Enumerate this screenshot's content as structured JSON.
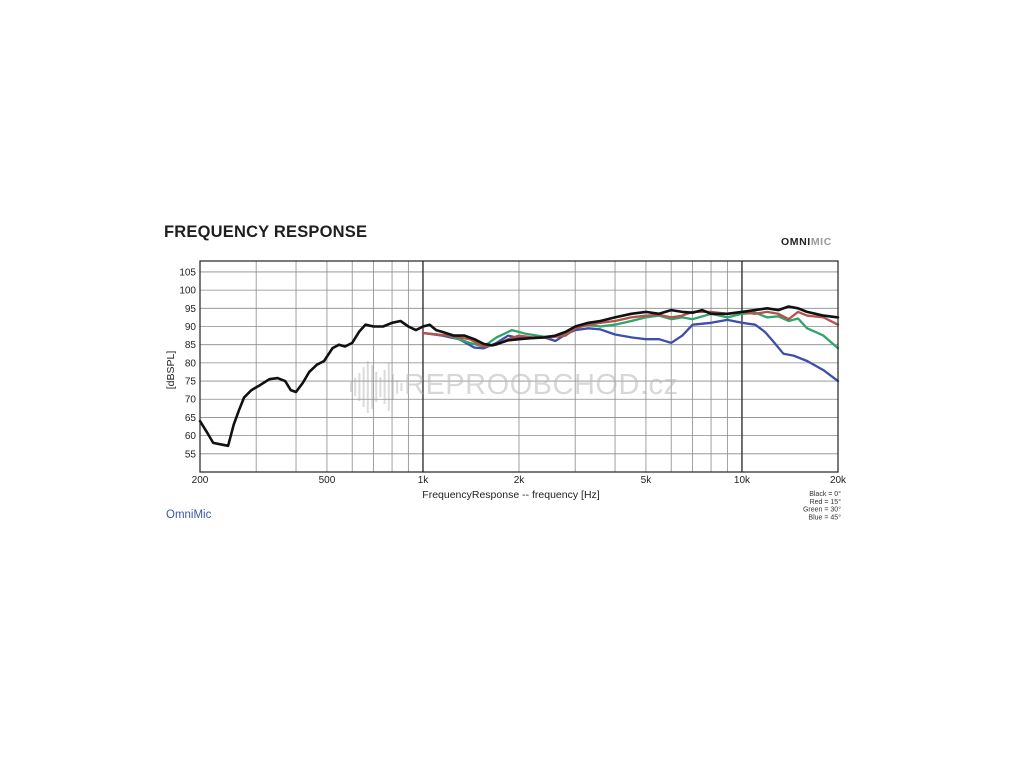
{
  "header": {
    "title": "FREQUENCY RESPONSE",
    "brand_part1": "OMNI",
    "brand_part2": "MIC"
  },
  "footer": {
    "label": "OmniMic"
  },
  "watermark": {
    "text": "REPROOBCHOD.cz"
  },
  "colors": {
    "black": "#111111",
    "red": "#b5524b",
    "green": "#2fa56a",
    "blue": "#3d4fa8",
    "grid": "#8a8a8a",
    "grid_major": "#333333"
  },
  "chart_data": {
    "type": "line",
    "title": "",
    "xlabel": "FrequencyResponse -- frequency [Hz]",
    "ylabel": "[dBSPL]",
    "x_scale": "log",
    "xlim": [
      200,
      20000
    ],
    "ylim": [
      50,
      108
    ],
    "grid": true,
    "x_ticks": [
      {
        "value": 200,
        "label": "200"
      },
      {
        "value": 500,
        "label": "500"
      },
      {
        "value": 1000,
        "label": "1k"
      },
      {
        "value": 2000,
        "label": "2k"
      },
      {
        "value": 5000,
        "label": "5k"
      },
      {
        "value": 10000,
        "label": "10k"
      },
      {
        "value": 20000,
        "label": "20k"
      }
    ],
    "y_ticks": [
      55,
      60,
      65,
      70,
      75,
      80,
      85,
      90,
      95,
      100,
      105
    ],
    "legend": [
      "Black = 0°",
      "Red = 15°",
      "Green = 30°",
      "Blue = 45°"
    ],
    "legend_position": "bottom-right",
    "series": [
      {
        "name": "Blue = 45°",
        "color": "blue",
        "points": [
          [
            1000,
            88.2
          ],
          [
            1150,
            87.5
          ],
          [
            1300,
            86.5
          ],
          [
            1450,
            84.2
          ],
          [
            1550,
            84.0
          ],
          [
            1700,
            85.5
          ],
          [
            1850,
            87.5
          ],
          [
            2000,
            86.8
          ],
          [
            2200,
            86.8
          ],
          [
            2400,
            87.0
          ],
          [
            2600,
            86.0
          ],
          [
            2800,
            87.8
          ],
          [
            3000,
            89.0
          ],
          [
            3300,
            89.5
          ],
          [
            3600,
            89.2
          ],
          [
            4000,
            87.8
          ],
          [
            4500,
            87.0
          ],
          [
            5000,
            86.5
          ],
          [
            5500,
            86.5
          ],
          [
            6000,
            85.5
          ],
          [
            6500,
            87.5
          ],
          [
            7000,
            90.5
          ],
          [
            8000,
            91.0
          ],
          [
            9000,
            91.8
          ],
          [
            10000,
            91.0
          ],
          [
            11000,
            90.5
          ],
          [
            11800,
            88.5
          ],
          [
            12500,
            86.0
          ],
          [
            13500,
            82.5
          ],
          [
            14500,
            82.0
          ],
          [
            16000,
            80.5
          ],
          [
            18000,
            78.0
          ],
          [
            20000,
            75.0
          ]
        ]
      },
      {
        "name": "Green = 30°",
        "color": "green",
        "points": [
          [
            1000,
            88.2
          ],
          [
            1200,
            87.5
          ],
          [
            1400,
            85.5
          ],
          [
            1550,
            84.5
          ],
          [
            1700,
            87.0
          ],
          [
            1900,
            89.0
          ],
          [
            2100,
            88.0
          ],
          [
            2400,
            87.2
          ],
          [
            2700,
            87.5
          ],
          [
            3000,
            89.5
          ],
          [
            3300,
            90.5
          ],
          [
            3600,
            90.0
          ],
          [
            4000,
            90.5
          ],
          [
            4500,
            91.5
          ],
          [
            5000,
            92.5
          ],
          [
            5500,
            93.0
          ],
          [
            6000,
            92.0
          ],
          [
            6500,
            92.5
          ],
          [
            7000,
            92.0
          ],
          [
            8000,
            93.5
          ],
          [
            9000,
            92.5
          ],
          [
            10000,
            93.5
          ],
          [
            11000,
            93.8
          ],
          [
            12000,
            92.5
          ],
          [
            13000,
            92.8
          ],
          [
            14000,
            91.5
          ],
          [
            15000,
            92.2
          ],
          [
            16000,
            89.5
          ],
          [
            17000,
            88.5
          ],
          [
            18000,
            87.5
          ],
          [
            20000,
            84.0
          ]
        ]
      },
      {
        "name": "Red = 15°",
        "color": "red",
        "points": [
          [
            1000,
            88.2
          ],
          [
            1200,
            87.5
          ],
          [
            1400,
            86.5
          ],
          [
            1550,
            84.5
          ],
          [
            1700,
            85.0
          ],
          [
            1850,
            86.5
          ],
          [
            2000,
            87.5
          ],
          [
            2200,
            87.0
          ],
          [
            2500,
            87.0
          ],
          [
            2800,
            87.5
          ],
          [
            3000,
            89.5
          ],
          [
            3300,
            90.5
          ],
          [
            3600,
            91.0
          ],
          [
            4000,
            91.5
          ],
          [
            4500,
            92.5
          ],
          [
            5000,
            93.0
          ],
          [
            5500,
            93.2
          ],
          [
            6000,
            92.5
          ],
          [
            6500,
            93.0
          ],
          [
            7000,
            94.0
          ],
          [
            8000,
            94.0
          ],
          [
            9000,
            93.5
          ],
          [
            10000,
            94.0
          ],
          [
            11000,
            93.5
          ],
          [
            12000,
            94.0
          ],
          [
            13000,
            93.5
          ],
          [
            14000,
            92.0
          ],
          [
            15000,
            94.0
          ],
          [
            16000,
            93.0
          ],
          [
            18000,
            92.5
          ],
          [
            20000,
            90.5
          ]
        ]
      },
      {
        "name": "Black = 0°",
        "color": "black",
        "points": [
          [
            200,
            64.0
          ],
          [
            210,
            61.0
          ],
          [
            220,
            58.0
          ],
          [
            235,
            57.5
          ],
          [
            245,
            57.2
          ],
          [
            255,
            63.0
          ],
          [
            265,
            67.0
          ],
          [
            275,
            70.5
          ],
          [
            290,
            72.5
          ],
          [
            310,
            74.0
          ],
          [
            330,
            75.5
          ],
          [
            350,
            75.8
          ],
          [
            370,
            75.0
          ],
          [
            385,
            72.5
          ],
          [
            400,
            72.0
          ],
          [
            420,
            74.5
          ],
          [
            440,
            77.5
          ],
          [
            465,
            79.5
          ],
          [
            490,
            80.5
          ],
          [
            520,
            84.0
          ],
          [
            545,
            85.0
          ],
          [
            570,
            84.5
          ],
          [
            600,
            85.5
          ],
          [
            630,
            88.5
          ],
          [
            660,
            90.5
          ],
          [
            700,
            90.0
          ],
          [
            750,
            90.0
          ],
          [
            800,
            91.0
          ],
          [
            850,
            91.5
          ],
          [
            900,
            90.0
          ],
          [
            950,
            89.0
          ],
          [
            1000,
            90.0
          ],
          [
            1050,
            90.5
          ],
          [
            1100,
            89.0
          ],
          [
            1150,
            88.5
          ],
          [
            1250,
            87.5
          ],
          [
            1350,
            87.5
          ],
          [
            1450,
            86.5
          ],
          [
            1550,
            85.2
          ],
          [
            1650,
            84.8
          ],
          [
            1750,
            85.5
          ],
          [
            1850,
            86.2
          ],
          [
            2000,
            86.5
          ],
          [
            2200,
            86.8
          ],
          [
            2400,
            87.0
          ],
          [
            2600,
            87.5
          ],
          [
            2800,
            88.5
          ],
          [
            3000,
            90.0
          ],
          [
            3300,
            91.0
          ],
          [
            3600,
            91.5
          ],
          [
            4000,
            92.5
          ],
          [
            4500,
            93.5
          ],
          [
            5000,
            94.0
          ],
          [
            5500,
            93.5
          ],
          [
            6000,
            94.5
          ],
          [
            6500,
            94.0
          ],
          [
            7000,
            93.8
          ],
          [
            7500,
            94.5
          ],
          [
            8000,
            93.5
          ],
          [
            9000,
            93.5
          ],
          [
            10000,
            94.0
          ],
          [
            11000,
            94.5
          ],
          [
            12000,
            95.0
          ],
          [
            13000,
            94.5
          ],
          [
            14000,
            95.5
          ],
          [
            15000,
            95.0
          ],
          [
            16000,
            94.0
          ],
          [
            17000,
            93.5
          ],
          [
            18000,
            93.0
          ],
          [
            20000,
            92.5
          ]
        ]
      }
    ]
  }
}
